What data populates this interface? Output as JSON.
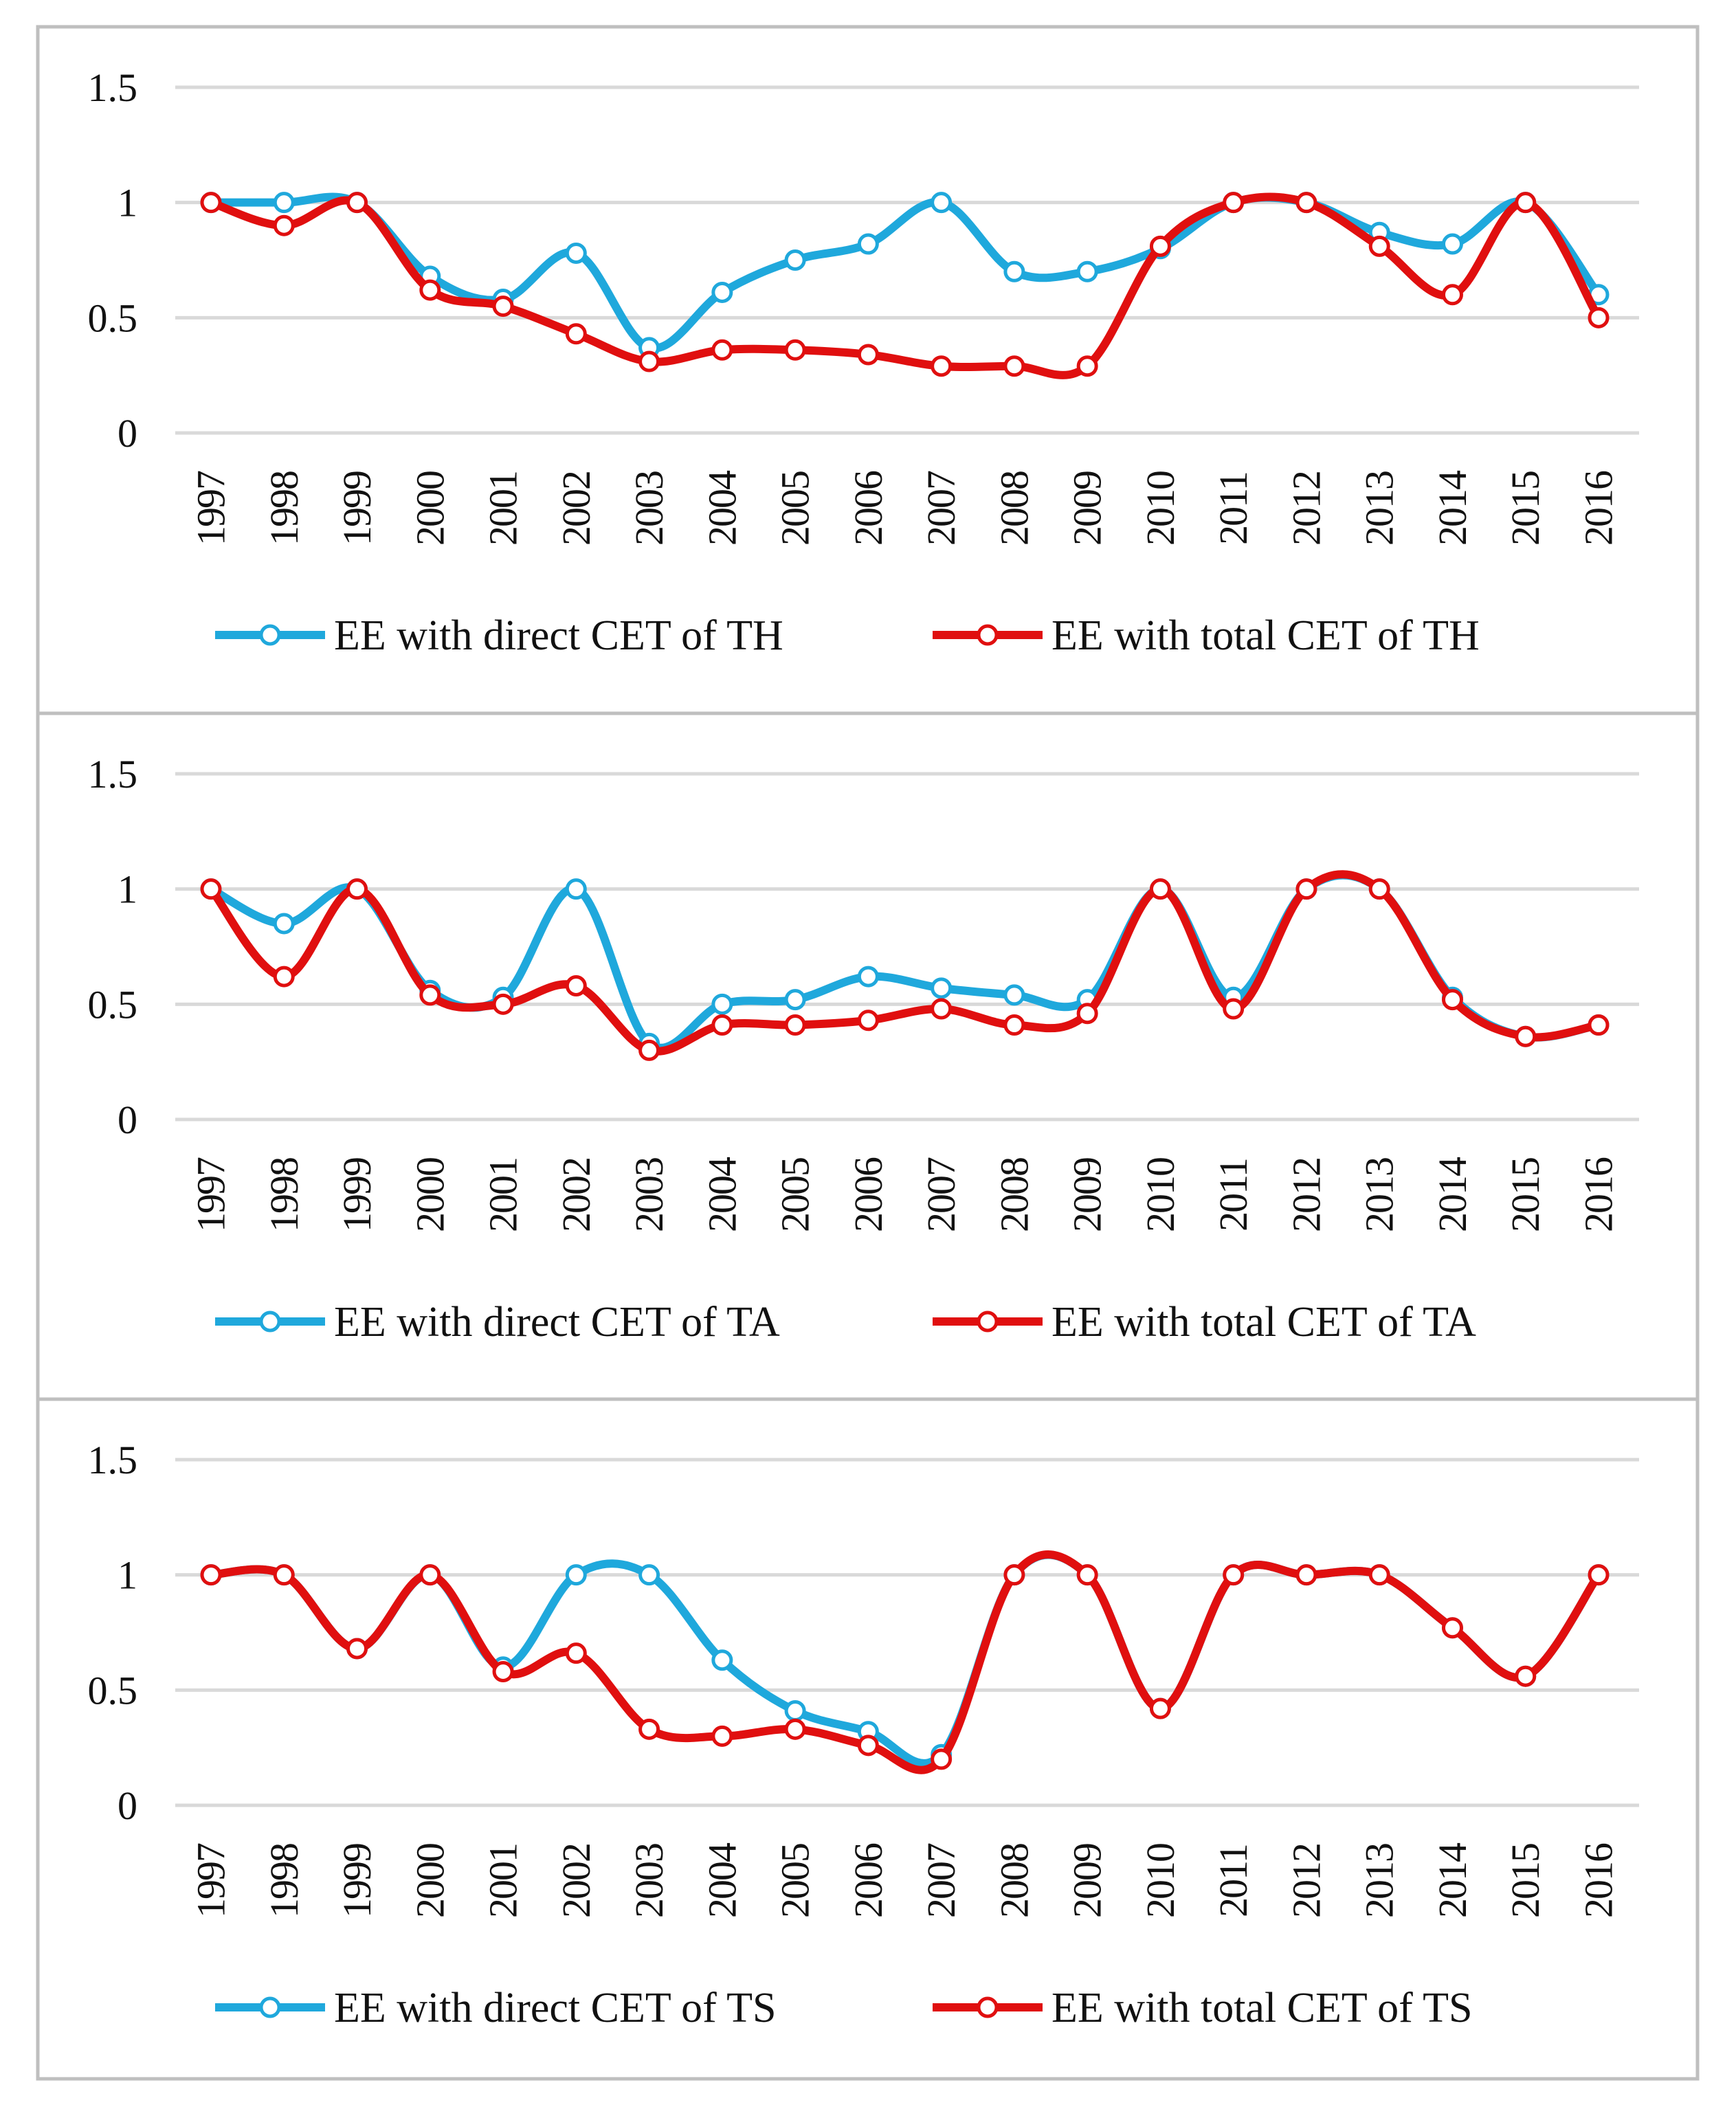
{
  "colors": {
    "direct": "#1fa8dc",
    "total": "#e00f0f",
    "grid": "#d9d9d9",
    "border": "#bfbfbf",
    "marker_fill": "#ffffff"
  },
  "chart_data": [
    {
      "type": "line",
      "x": [
        "1997",
        "1998",
        "1999",
        "2000",
        "2001",
        "2002",
        "2003",
        "2004",
        "2005",
        "2006",
        "2007",
        "2008",
        "2009",
        "2010",
        "2011",
        "2012",
        "2013",
        "2014",
        "2015",
        "2016"
      ],
      "ylim": [
        0,
        1.5
      ],
      "yticks": [
        "0",
        "0.5",
        "1",
        "1.5"
      ],
      "grid": true,
      "legend_position": "bottom",
      "series": [
        {
          "name": "EE with direct CET of TH",
          "color_key": "direct",
          "values": [
            1.0,
            1.0,
            1.0,
            0.68,
            0.58,
            0.78,
            0.37,
            0.61,
            0.75,
            0.82,
            1.0,
            0.7,
            0.7,
            0.8,
            1.0,
            1.0,
            0.87,
            0.82,
            1.0,
            0.6
          ]
        },
        {
          "name": "EE with total CET of TH",
          "color_key": "total",
          "values": [
            1.0,
            0.9,
            1.0,
            0.62,
            0.55,
            0.43,
            0.31,
            0.36,
            0.36,
            0.34,
            0.29,
            0.29,
            0.29,
            0.81,
            1.0,
            1.0,
            0.81,
            0.6,
            1.0,
            0.5
          ]
        }
      ]
    },
    {
      "type": "line",
      "x": [
        "1997",
        "1998",
        "1999",
        "2000",
        "2001",
        "2002",
        "2003",
        "2004",
        "2005",
        "2006",
        "2007",
        "2008",
        "2009",
        "2010",
        "2011",
        "2012",
        "2013",
        "2014",
        "2015",
        "2016"
      ],
      "ylim": [
        0,
        1.5
      ],
      "yticks": [
        "0",
        "0.5",
        "1",
        "1.5"
      ],
      "grid": true,
      "legend_position": "bottom",
      "series": [
        {
          "name": "EE with direct CET of TA",
          "color_key": "direct",
          "values": [
            1.0,
            0.85,
            1.0,
            0.56,
            0.53,
            1.0,
            0.33,
            0.5,
            0.52,
            0.62,
            0.57,
            0.54,
            0.52,
            1.0,
            0.53,
            1.0,
            1.0,
            0.53,
            0.36,
            0.41
          ]
        },
        {
          "name": "EE with total CET of TA",
          "color_key": "total",
          "values": [
            1.0,
            0.62,
            1.0,
            0.54,
            0.5,
            0.58,
            0.3,
            0.41,
            0.41,
            0.43,
            0.48,
            0.41,
            0.46,
            1.0,
            0.48,
            1.0,
            1.0,
            0.52,
            0.36,
            0.41
          ]
        }
      ]
    },
    {
      "type": "line",
      "x": [
        "1997",
        "1998",
        "1999",
        "2000",
        "2001",
        "2002",
        "2003",
        "2004",
        "2005",
        "2006",
        "2007",
        "2008",
        "2009",
        "2010",
        "2011",
        "2012",
        "2013",
        "2014",
        "2015",
        "2016"
      ],
      "ylim": [
        0,
        1.5
      ],
      "yticks": [
        "0",
        "0.5",
        "1",
        "1.5"
      ],
      "grid": true,
      "legend_position": "bottom",
      "series": [
        {
          "name": "EE with direct CET of TS",
          "color_key": "direct",
          "values": [
            1.0,
            1.0,
            0.68,
            1.0,
            0.6,
            1.0,
            1.0,
            0.63,
            0.41,
            0.32,
            0.22,
            1.0,
            1.0,
            0.42,
            1.0,
            1.0,
            1.0,
            0.77,
            0.56,
            1.0
          ]
        },
        {
          "name": "EE with total CET of TS",
          "color_key": "total",
          "values": [
            1.0,
            1.0,
            0.68,
            1.0,
            0.58,
            0.66,
            0.33,
            0.3,
            0.33,
            0.26,
            0.2,
            1.0,
            1.0,
            0.42,
            1.0,
            1.0,
            1.0,
            0.77,
            0.56,
            1.0
          ]
        }
      ]
    }
  ]
}
